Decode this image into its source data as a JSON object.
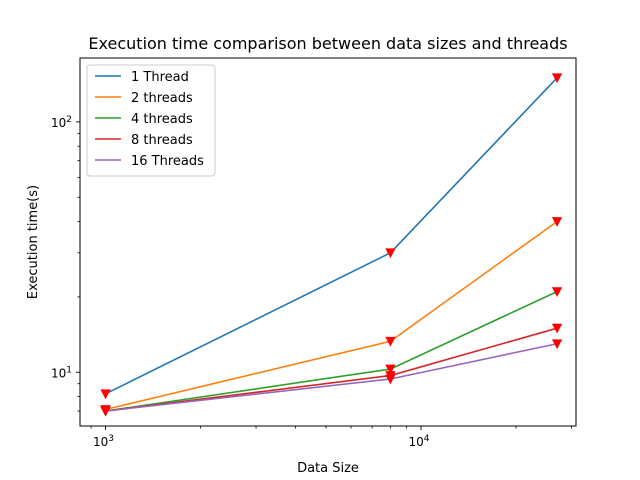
{
  "chart_data": {
    "type": "line",
    "title": "Execution time comparison between data sizes and threads",
    "xlabel": "Data Size",
    "ylabel": "Execution time(s)",
    "xscale": "log",
    "yscale": "log",
    "xlim": [
      830,
      31000
    ],
    "ylim": [
      6.1,
      180
    ],
    "x": [
      1000,
      8000,
      27000
    ],
    "x_tick_labels": [
      {
        "value": 1000,
        "base": "10",
        "exp": "3"
      },
      {
        "value": 10000,
        "base": "10",
        "exp": "4"
      }
    ],
    "y_tick_labels": [
      {
        "value": 10,
        "base": "10",
        "exp": "1"
      },
      {
        "value": 100,
        "base": "10",
        "exp": "2"
      }
    ],
    "grid": false,
    "legend_position": "top-left",
    "marker": "triangle-down",
    "marker_color": "#ff0000",
    "series": [
      {
        "name": "1 Thread",
        "color": "#1f77b4",
        "values": [
          8.2,
          30,
          150
        ]
      },
      {
        "name": "2 threads",
        "color": "#ff7f0e",
        "values": [
          7.1,
          13.3,
          40
        ]
      },
      {
        "name": "4 threads",
        "color": "#2ca02c",
        "values": [
          7.0,
          10.3,
          21
        ]
      },
      {
        "name": "8 threads",
        "color": "#d62728",
        "values": [
          7.0,
          9.7,
          15
        ]
      },
      {
        "name": "16 Threads",
        "color": "#9467bd",
        "values": [
          7.0,
          9.4,
          13
        ]
      }
    ]
  }
}
